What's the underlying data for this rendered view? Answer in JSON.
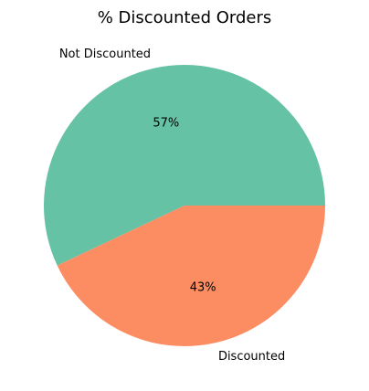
{
  "chart_data": {
    "type": "pie",
    "title": "% Discounted Orders",
    "slices": [
      {
        "label": "Not Discounted",
        "value": 57,
        "pct_label": "57%",
        "color": "#66c2a5"
      },
      {
        "label": "Discounted",
        "value": 43,
        "pct_label": "43%",
        "color": "#fc8d62"
      }
    ],
    "start_angle_deg": 0,
    "direction": "counterclockwise",
    "legend": "none"
  }
}
